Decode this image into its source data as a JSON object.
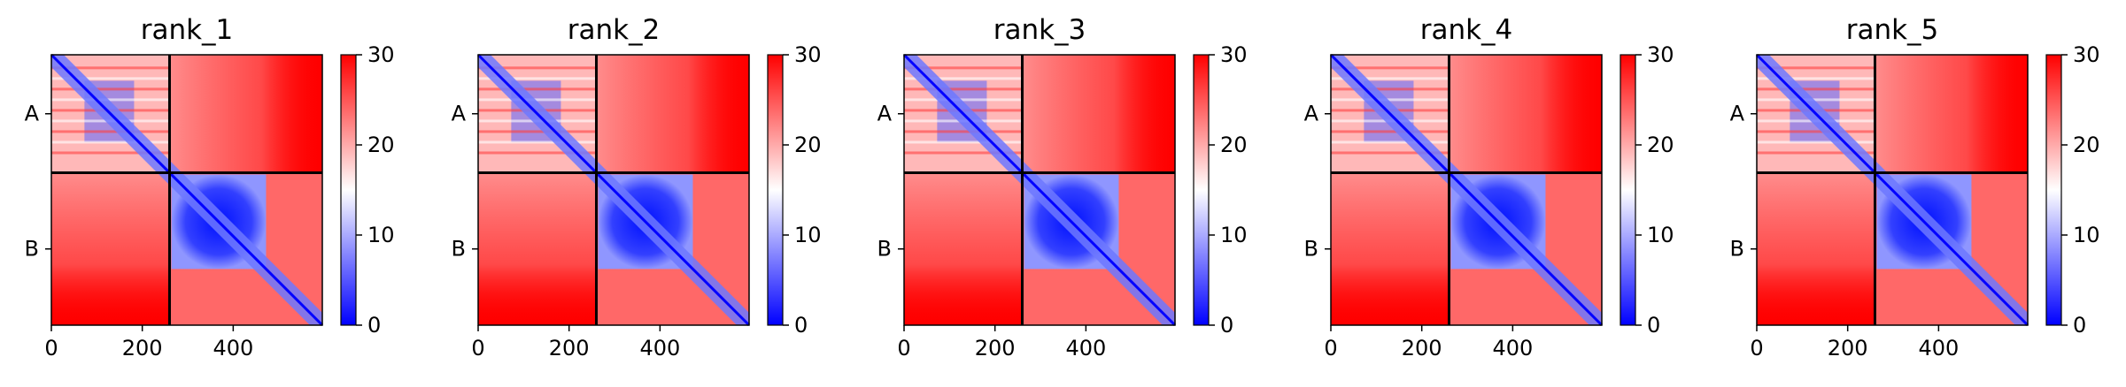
{
  "chart_data": {
    "type": "heatmap",
    "colormap": [
      "#0000ff",
      "#ffffff",
      "#ff0000"
    ],
    "diagonal_line_color": "#0000ff",
    "chain_boundary_color": "#000000",
    "clim": [
      0,
      30
    ],
    "colorbar_ticks": [
      "0",
      "10",
      "20",
      "30"
    ],
    "xlim": [
      0,
      596
    ],
    "xticks": [
      {
        "value": 0,
        "label": "0"
      },
      {
        "value": 200,
        "label": "200"
      },
      {
        "value": 400,
        "label": "400"
      }
    ],
    "chain_boundary": 260,
    "chains": [
      {
        "name": "A",
        "start": 0,
        "end": 260
      },
      {
        "name": "B",
        "start": 260,
        "end": 596
      }
    ],
    "panels": [
      {
        "title": "rank_1"
      },
      {
        "title": "rank_2"
      },
      {
        "title": "rank_3"
      },
      {
        "title": "rank_4"
      },
      {
        "title": "rank_5"
      }
    ]
  }
}
